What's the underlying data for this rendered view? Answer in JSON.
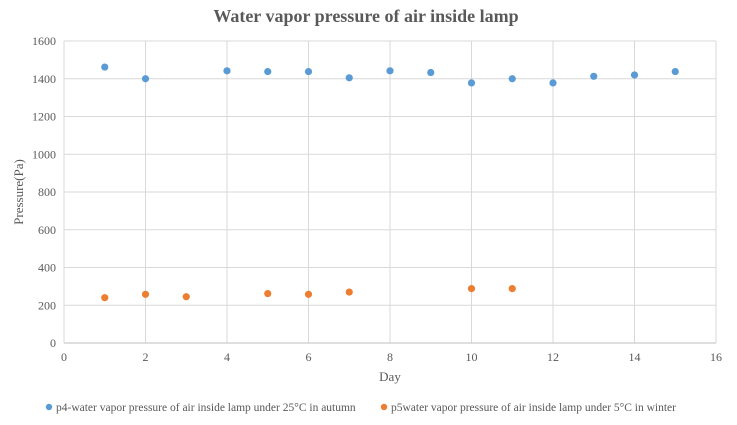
{
  "chart_data": {
    "type": "scatter",
    "title": "Water vapor pressure of air inside lamp",
    "xlabel": "Day",
    "ylabel": "Pressure(Pa)",
    "xlim": [
      0,
      16
    ],
    "ylim": [
      0,
      1600
    ],
    "x_ticks": [
      0,
      2,
      4,
      6,
      8,
      10,
      12,
      14,
      16
    ],
    "y_ticks": [
      0,
      200,
      400,
      600,
      800,
      1000,
      1200,
      1400,
      1600
    ],
    "grid": true,
    "legend_position": "bottom",
    "series": [
      {
        "name": "p4-water vapor pressure of air inside lamp under 25°C in autumn",
        "color": "#5B9BD5",
        "x": [
          1,
          2,
          4,
          5,
          6,
          7,
          8,
          9,
          10,
          11,
          12,
          13,
          14,
          15
        ],
        "y": [
          1462,
          1400,
          1442,
          1438,
          1438,
          1405,
          1442,
          1433,
          1378,
          1400,
          1378,
          1413,
          1420,
          1438
        ]
      },
      {
        "name": "p5water vapor pressure of air inside lamp under 5°C in winter",
        "color": "#ED7D31",
        "x": [
          1,
          2,
          3,
          5,
          6,
          7,
          10,
          11
        ],
        "y": [
          240,
          258,
          245,
          262,
          258,
          270,
          288,
          288
        ]
      }
    ]
  }
}
